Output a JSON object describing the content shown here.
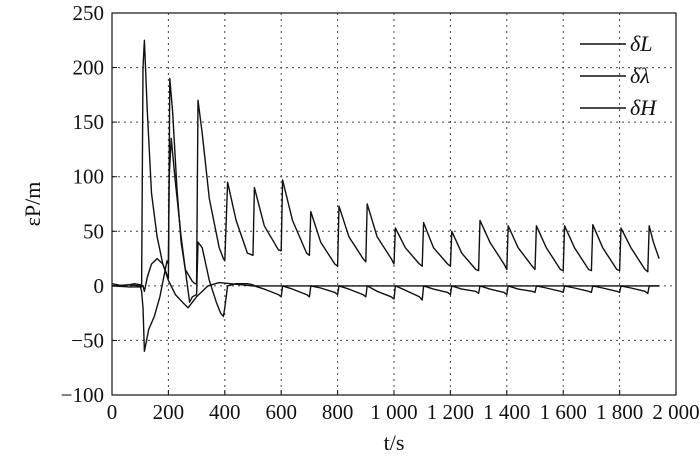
{
  "chart_data": {
    "type": "line",
    "title": "",
    "xlabel": "t/s",
    "ylabel": "εP/m",
    "xlim": [
      0,
      2000
    ],
    "ylim": [
      -100,
      250
    ],
    "xticks": [
      0,
      200,
      400,
      600,
      800,
      1000,
      1200,
      1400,
      1600,
      1800,
      2000
    ],
    "xtick_labels": [
      "0",
      "200",
      "400",
      "600",
      "800",
      "1 000",
      "1 200",
      "1 400",
      "1 600",
      "1 800",
      "2 000"
    ],
    "yticks": [
      -100,
      -50,
      0,
      50,
      100,
      150,
      200,
      250
    ],
    "ytick_labels": [
      "−100",
      "−50",
      "0",
      "50",
      "100",
      "150",
      "200",
      "250"
    ],
    "grid": true,
    "legend_position": "top-right",
    "series": [
      {
        "name": "δL",
        "x": [
          0,
          60,
          105,
          110,
          115,
          125,
          140,
          160,
          180,
          195,
          200,
          205,
          215,
          230,
          245,
          260,
          285,
          295,
          300,
          305,
          320,
          345,
          380,
          395,
          400,
          410,
          440,
          480,
          500,
          505,
          540,
          590,
          600,
          605,
          640,
          690,
          700,
          705,
          740,
          790,
          800,
          805,
          840,
          890,
          900,
          905,
          940,
          990,
          1000,
          1005,
          1040,
          1090,
          1100,
          1105,
          1140,
          1190,
          1200,
          1205,
          1240,
          1290,
          1300,
          1305,
          1340,
          1390,
          1400,
          1405,
          1440,
          1490,
          1500,
          1505,
          1540,
          1590,
          1600,
          1605,
          1640,
          1690,
          1700,
          1705,
          1740,
          1790,
          1800,
          1805,
          1840,
          1890,
          1900,
          1905,
          1920,
          1940
        ],
        "values": [
          0,
          -1,
          -1,
          200,
          225,
          160,
          85,
          45,
          20,
          10,
          7,
          190,
          160,
          90,
          40,
          15,
          4,
          2,
          2,
          170,
          140,
          80,
          35,
          25,
          23,
          95,
          60,
          30,
          28,
          90,
          55,
          33,
          32,
          97,
          60,
          30,
          28,
          68,
          40,
          20,
          18,
          73,
          45,
          25,
          22,
          75,
          45,
          25,
          20,
          53,
          35,
          20,
          18,
          58,
          35,
          20,
          18,
          50,
          30,
          15,
          14,
          60,
          40,
          20,
          15,
          55,
          35,
          18,
          15,
          55,
          35,
          15,
          14,
          55,
          35,
          15,
          14,
          56,
          35,
          15,
          14,
          53,
          35,
          15,
          13,
          55,
          40,
          25
        ]
      },
      {
        "name": "δλ",
        "x": [
          0,
          60,
          100,
          105,
          110,
          115,
          130,
          150,
          170,
          185,
          195,
          200,
          203,
          210,
          225,
          245,
          265,
          275,
          285,
          300,
          305,
          320,
          345,
          370,
          385,
          395,
          400,
          410,
          440,
          480,
          500,
          505,
          540,
          590,
          600,
          605,
          640,
          690,
          700,
          705,
          740,
          790,
          800,
          805,
          840,
          890,
          900,
          905,
          940,
          990,
          1000,
          1005,
          1040,
          1090,
          1100,
          1105,
          1140,
          1190,
          1200,
          1205,
          1240,
          1290,
          1300,
          1305,
          1340,
          1390,
          1400,
          1405,
          1440,
          1490,
          1500,
          1505,
          1540,
          1590,
          1600,
          1605,
          1640,
          1690,
          1700,
          1705,
          1740,
          1790,
          1800,
          1805,
          1840,
          1890,
          1900,
          1905,
          1940
        ],
        "values": [
          0,
          1,
          0,
          -5,
          -20,
          -60,
          -40,
          -28,
          -10,
          10,
          23,
          20,
          100,
          135,
          95,
          45,
          5,
          -15,
          -10,
          -8,
          40,
          35,
          5,
          -15,
          -25,
          -28,
          -20,
          0,
          2,
          2,
          1,
          0,
          -3,
          -8,
          -10,
          0,
          -3,
          -8,
          -10,
          0,
          -2,
          -6,
          -8,
          0,
          -3,
          -8,
          -10,
          0,
          -5,
          -10,
          -12,
          0,
          -4,
          -10,
          -13,
          0,
          -3,
          -6,
          -8,
          0,
          -3,
          -5,
          -7,
          0,
          -3,
          -6,
          -8,
          0,
          -3,
          -5,
          -6,
          0,
          -2,
          -5,
          -6,
          0,
          -2,
          -5,
          -6,
          0,
          -2,
          -5,
          -6,
          0,
          -2,
          -5,
          -7,
          0,
          0
        ]
      },
      {
        "name": "δH",
        "x": [
          0,
          40,
          80,
          100,
          110,
          115,
          125,
          140,
          160,
          180,
          200,
          225,
          250,
          270,
          300,
          340,
          380,
          420,
          500,
          600,
          700,
          800,
          900,
          1000,
          1100,
          1200,
          1300,
          1400,
          1500,
          1600,
          1700,
          1800,
          1900,
          1940
        ],
        "values": [
          2,
          0,
          2,
          1,
          0,
          -5,
          8,
          20,
          25,
          20,
          5,
          -8,
          -15,
          -20,
          -10,
          0,
          3,
          2,
          0,
          0,
          0,
          0,
          0,
          0,
          0,
          0,
          0,
          0,
          0,
          0,
          0,
          0,
          0,
          0
        ]
      }
    ]
  }
}
